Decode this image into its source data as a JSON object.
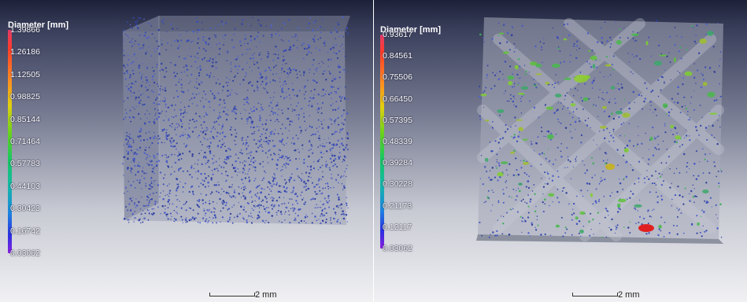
{
  "left_panel": {
    "legend": {
      "title": "Diameter [mm]",
      "ticks": [
        "1.39866",
        "1.26186",
        "1.12505",
        "0.98825",
        "0.85144",
        "0.71464",
        "0.57783",
        "0.44103",
        "0.30423",
        "0.16742",
        "0.03062"
      ]
    },
    "scale_bar": {
      "label": "2 mm"
    }
  },
  "right_panel": {
    "legend": {
      "title": "Diameter [mm]",
      "ticks": [
        "0.93617",
        "0.84561",
        "0.75506",
        "0.66450",
        "0.57395",
        "0.48339",
        "0.39284",
        "0.30228",
        "0.21173",
        "0.12117",
        "0.03062"
      ]
    },
    "scale_bar": {
      "label": "2 mm"
    }
  },
  "colors": {
    "pore_blue": "#3b4db8",
    "highlight_red": "#e02020",
    "highlight_green": "#5fc23a"
  }
}
